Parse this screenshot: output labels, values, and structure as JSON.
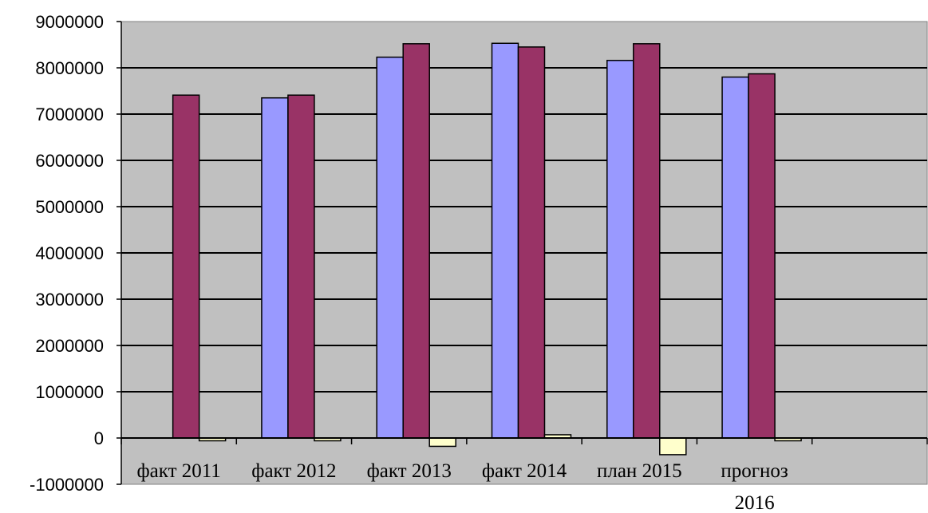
{
  "chart_data": {
    "type": "bar",
    "categories": [
      [
        "факт 2011"
      ],
      [
        "факт 2012"
      ],
      [
        "факт 2013"
      ],
      [
        "факт 2014"
      ],
      [
        "план 2015"
      ],
      [
        "прогноз",
        "2016"
      ]
    ],
    "series": [
      {
        "color": "#9999ff",
        "values": [
          0,
          7350000,
          8230000,
          8530000,
          8160000,
          7800000
        ]
      },
      {
        "color": "#993366",
        "values": [
          7410000,
          7410000,
          8520000,
          8450000,
          8520000,
          7870000
        ]
      },
      {
        "color": "#ffffcc",
        "values": [
          -60000,
          -60000,
          -180000,
          70000,
          -360000,
          -60000
        ]
      }
    ],
    "ylim": [
      -1000000,
      9000000
    ],
    "yticks": [
      "-1000000",
      "0",
      "1000000",
      "2000000",
      "3000000",
      "4000000",
      "5000000",
      "6000000",
      "7000000",
      "8000000",
      "9000000"
    ],
    "ytick_values": [
      -1000000,
      0,
      1000000,
      2000000,
      3000000,
      4000000,
      5000000,
      6000000,
      7000000,
      8000000,
      9000000
    ],
    "category_slots": 7,
    "grid": true,
    "legend": "none",
    "plot_background": "#c0c0c0",
    "bar_outline": "#000000"
  }
}
